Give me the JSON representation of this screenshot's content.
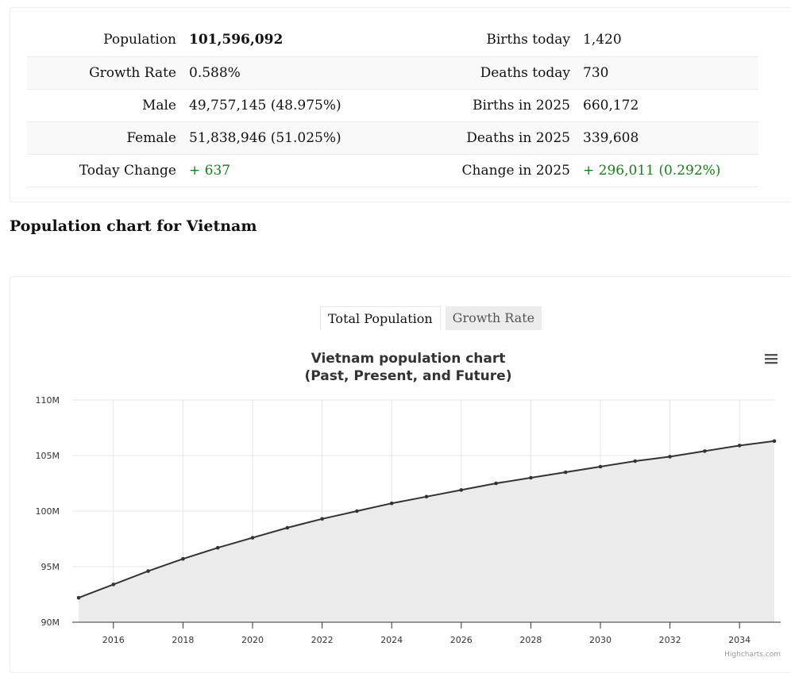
{
  "stats": {
    "rows": [
      {
        "left_label": "Population",
        "left_value": "101,596,092",
        "right_label": "Births today",
        "right_value": "1,420"
      },
      {
        "left_label": "Growth Rate",
        "left_value": "0.588%",
        "right_label": "Deaths today",
        "right_value": "730"
      },
      {
        "left_label": "Male",
        "left_value": "49,757,145 (48.975%)",
        "right_label": "Births in 2025",
        "right_value": "660,172"
      },
      {
        "left_label": "Female",
        "left_value": "51,838,946 (51.025%)",
        "right_label": "Deaths in 2025",
        "right_value": "339,608"
      },
      {
        "left_label": "Today Change",
        "left_value": "+ 637",
        "right_label": "Change in 2025",
        "right_value": "+ 296,011 (0.292%)"
      }
    ]
  },
  "section_title": "Population chart for Vietnam",
  "tabs": {
    "total": "Total Population",
    "growth": "Growth Rate"
  },
  "colors": {
    "accent_green": "#1a7f1a",
    "line": "#333333",
    "area": "#ebebeb"
  },
  "chart_data": {
    "type": "area",
    "title": "Vietnam population chart",
    "subtitle": "(Past, Present, and Future)",
    "x": [
      2015,
      2016,
      2017,
      2018,
      2019,
      2020,
      2021,
      2022,
      2023,
      2024,
      2025,
      2026,
      2027,
      2028,
      2029,
      2030,
      2031,
      2032,
      2033,
      2034,
      2035
    ],
    "series": [
      {
        "values": [
          92.2,
          93.4,
          94.6,
          95.7,
          96.7,
          97.6,
          98.5,
          99.3,
          100.0,
          100.7,
          101.3,
          101.9,
          102.5,
          103.0,
          103.5,
          104.0,
          104.5,
          104.9,
          105.4,
          105.9,
          106.3
        ]
      }
    ],
    "xticks": [
      "2016",
      "2018",
      "2020",
      "2022",
      "2024",
      "2026",
      "2028",
      "2030",
      "2032",
      "2034"
    ],
    "yticks": [
      "90M",
      "95M",
      "100M",
      "105M",
      "110M"
    ],
    "ylim": [
      90,
      110
    ],
    "xlim": [
      2015,
      2035
    ],
    "grid": true,
    "credits": "Highcharts.com",
    "menu_icon": "hamburger-menu-icon"
  }
}
